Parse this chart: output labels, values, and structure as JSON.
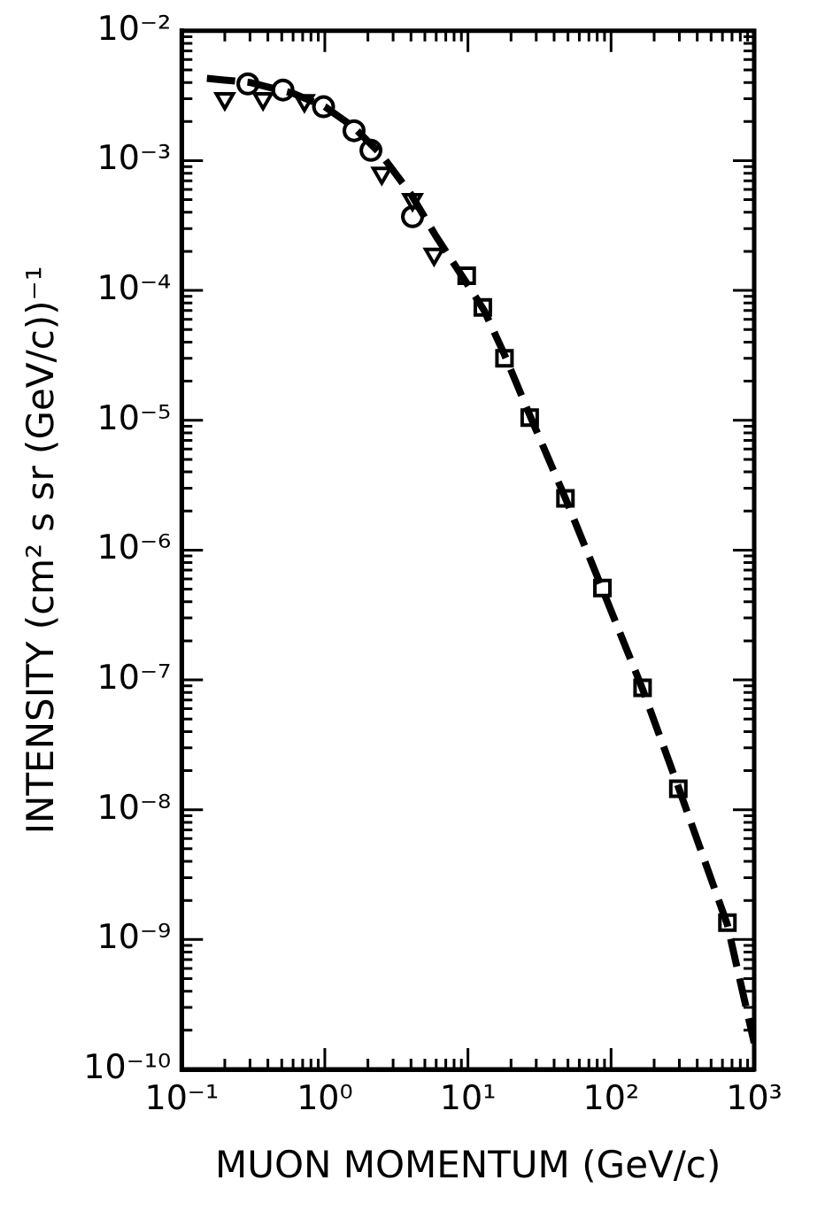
{
  "chart_data": {
    "type": "scatter",
    "xlabel": "MUON MOMENTUM (GeV/c)",
    "ylabel": "INTENSITY (cm² s sr (GeV/c))⁻¹",
    "log": "xy",
    "grid": false,
    "legend": false,
    "xlim": [
      0.1,
      1000
    ],
    "ylim": [
      1e-10,
      0.01
    ],
    "xticks": [
      {
        "value": 0.1,
        "label": "10⁻¹"
      },
      {
        "value": 0.2,
        "label": null
      },
      {
        "value": 0.3,
        "label": null
      },
      {
        "value": 0.4,
        "label": null
      },
      {
        "value": 0.5,
        "label": null
      },
      {
        "value": 0.6,
        "label": null
      },
      {
        "value": 0.7,
        "label": null
      },
      {
        "value": 0.8,
        "label": null
      },
      {
        "value": 0.9,
        "label": null
      },
      {
        "value": 1,
        "label": "10⁰"
      },
      {
        "value": 2,
        "label": null
      },
      {
        "value": 3,
        "label": null
      },
      {
        "value": 4,
        "label": null
      },
      {
        "value": 5,
        "label": null
      },
      {
        "value": 6,
        "label": null
      },
      {
        "value": 7,
        "label": null
      },
      {
        "value": 8,
        "label": null
      },
      {
        "value": 9,
        "label": null
      },
      {
        "value": 10,
        "label": "10¹"
      },
      {
        "value": 20,
        "label": null
      },
      {
        "value": 30,
        "label": null
      },
      {
        "value": 40,
        "label": null
      },
      {
        "value": 50,
        "label": null
      },
      {
        "value": 60,
        "label": null
      },
      {
        "value": 70,
        "label": null
      },
      {
        "value": 80,
        "label": null
      },
      {
        "value": 90,
        "label": null
      },
      {
        "value": 100,
        "label": "10²"
      },
      {
        "value": 200,
        "label": null
      },
      {
        "value": 300,
        "label": null
      },
      {
        "value": 400,
        "label": null
      },
      {
        "value": 500,
        "label": null
      },
      {
        "value": 600,
        "label": null
      },
      {
        "value": 700,
        "label": null
      },
      {
        "value": 800,
        "label": null
      },
      {
        "value": 900,
        "label": null
      },
      {
        "value": 1000,
        "label": "10³"
      }
    ],
    "yticks": [
      {
        "value": 1e-10,
        "label": "10⁻¹⁰"
      },
      {
        "value": 2e-10,
        "label": null
      },
      {
        "value": 3e-10,
        "label": null
      },
      {
        "value": 4e-10,
        "label": null
      },
      {
        "value": 5e-10,
        "label": null
      },
      {
        "value": 6e-10,
        "label": null
      },
      {
        "value": 7e-10,
        "label": null
      },
      {
        "value": 8e-10,
        "label": null
      },
      {
        "value": 9e-10,
        "label": null
      },
      {
        "value": 1e-09,
        "label": "10⁻⁹"
      },
      {
        "value": 2e-09,
        "label": null
      },
      {
        "value": 3e-09,
        "label": null
      },
      {
        "value": 4e-09,
        "label": null
      },
      {
        "value": 5e-09,
        "label": null
      },
      {
        "value": 6e-09,
        "label": null
      },
      {
        "value": 7e-09,
        "label": null
      },
      {
        "value": 8e-09,
        "label": null
      },
      {
        "value": 9e-09,
        "label": null
      },
      {
        "value": 1e-08,
        "label": "10⁻⁸"
      },
      {
        "value": 2e-08,
        "label": null
      },
      {
        "value": 3e-08,
        "label": null
      },
      {
        "value": 4e-08,
        "label": null
      },
      {
        "value": 5e-08,
        "label": null
      },
      {
        "value": 6e-08,
        "label": null
      },
      {
        "value": 7e-08,
        "label": null
      },
      {
        "value": 8e-08,
        "label": null
      },
      {
        "value": 9e-08,
        "label": null
      },
      {
        "value": 1e-07,
        "label": "10⁻⁷"
      },
      {
        "value": 2e-07,
        "label": null
      },
      {
        "value": 3e-07,
        "label": null
      },
      {
        "value": 4e-07,
        "label": null
      },
      {
        "value": 5e-07,
        "label": null
      },
      {
        "value": 6e-07,
        "label": null
      },
      {
        "value": 7e-07,
        "label": null
      },
      {
        "value": 8e-07,
        "label": null
      },
      {
        "value": 9e-07,
        "label": null
      },
      {
        "value": 1e-06,
        "label": "10⁻⁶"
      },
      {
        "value": 2e-06,
        "label": null
      },
      {
        "value": 3e-06,
        "label": null
      },
      {
        "value": 4e-06,
        "label": null
      },
      {
        "value": 5e-06,
        "label": null
      },
      {
        "value": 6e-06,
        "label": null
      },
      {
        "value": 7e-06,
        "label": null
      },
      {
        "value": 8e-06,
        "label": null
      },
      {
        "value": 9e-06,
        "label": null
      },
      {
        "value": 1e-05,
        "label": "10⁻⁵"
      },
      {
        "value": 2e-05,
        "label": null
      },
      {
        "value": 3e-05,
        "label": null
      },
      {
        "value": 4e-05,
        "label": null
      },
      {
        "value": 5e-05,
        "label": null
      },
      {
        "value": 6e-05,
        "label": null
      },
      {
        "value": 7e-05,
        "label": null
      },
      {
        "value": 8e-05,
        "label": null
      },
      {
        "value": 9e-05,
        "label": null
      },
      {
        "value": 0.0001,
        "label": "10⁻⁴"
      },
      {
        "value": 0.0002,
        "label": null
      },
      {
        "value": 0.0003,
        "label": null
      },
      {
        "value": 0.0004,
        "label": null
      },
      {
        "value": 0.0005,
        "label": null
      },
      {
        "value": 0.0006,
        "label": null
      },
      {
        "value": 0.0007,
        "label": null
      },
      {
        "value": 0.0008,
        "label": null
      },
      {
        "value": 0.0009,
        "label": null
      },
      {
        "value": 0.001,
        "label": "10⁻³"
      },
      {
        "value": 0.002,
        "label": null
      },
      {
        "value": 0.003,
        "label": null
      },
      {
        "value": 0.004,
        "label": null
      },
      {
        "value": 0.005,
        "label": null
      },
      {
        "value": 0.006,
        "label": null
      },
      {
        "value": 0.007,
        "label": null
      },
      {
        "value": 0.008,
        "label": null
      },
      {
        "value": 0.009,
        "label": null
      },
      {
        "value": 0.01,
        "label": "10⁻²"
      }
    ],
    "series": [
      {
        "type": "line",
        "line_style": "dashed",
        "marker": "none",
        "color": "#000000",
        "x": [
          0.15,
          0.3,
          0.6,
          1,
          1.6,
          2.5,
          4,
          6,
          10,
          13,
          18,
          27,
          48,
          87,
          166,
          295,
          650,
          1000
        ],
        "values": [
          0.0043,
          0.004,
          0.0033,
          0.0026,
          0.0018,
          0.0011,
          0.00055,
          0.00026,
          0.00011,
          7e-05,
          3.2e-05,
          1.1e-05,
          2.5e-06,
          5e-07,
          8.5e-08,
          1.5e-08,
          1.3e-09,
          1.6e-10
        ]
      },
      {
        "marker": "triangle",
        "color": "#000000",
        "x": [
          0.2,
          0.37,
          0.72,
          2.5,
          4.1,
          5.8
        ],
        "values": [
          0.003,
          0.003,
          0.0029,
          0.0008,
          0.0005,
          0.00019
        ]
      },
      {
        "marker": "circle",
        "color": "#000000",
        "x": [
          0.29,
          0.51,
          2.1,
          4.1
        ],
        "values": [
          0.0039,
          0.0035,
          0.0012,
          0.00037
        ]
      },
      {
        "marker": "circle",
        "color": "#000000",
        "x": [
          0.98,
          1.6
        ],
        "values": [
          0.0026,
          0.0017
        ]
      },
      {
        "marker": "square",
        "color": "#000000",
        "x": [
          9.8,
          12.7,
          18,
          27,
          48,
          87,
          166,
          295,
          650
        ],
        "values": [
          0.00013,
          7.4e-05,
          3e-05,
          1.05e-05,
          2.5e-06,
          5.1e-07,
          8.7e-08,
          1.45e-08,
          1.35e-09
        ]
      }
    ]
  }
}
